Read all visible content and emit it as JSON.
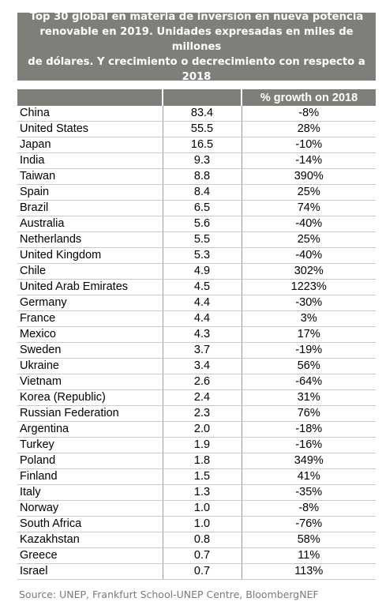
{
  "title_lines": [
    "Top 30 global en materia de inversión en nueva potencia",
    "renovable en 2019. Unidades expresadas en miles de millones",
    "de dólares. Y crecimiento o decrecimiento con respecto a 2018"
  ],
  "source": "Source: UNEP, Frankfurt School-UNEP Centre, BloombergNEF",
  "chart_data": {
    "type": "table",
    "columns": [
      "",
      "",
      "% growth on 2018"
    ],
    "rows": [
      {
        "country": "China",
        "value": "83.4",
        "growth": "-8%"
      },
      {
        "country": "United States",
        "value": "55.5",
        "growth": "28%"
      },
      {
        "country": "Japan",
        "value": "16.5",
        "growth": "-10%"
      },
      {
        "country": "India",
        "value": "9.3",
        "growth": "-14%"
      },
      {
        "country": "Taiwan",
        "value": "8.8",
        "growth": "390%"
      },
      {
        "country": "Spain",
        "value": "8.4",
        "growth": "25%"
      },
      {
        "country": "Brazil",
        "value": "6.5",
        "growth": "74%"
      },
      {
        "country": "Australia",
        "value": "5.6",
        "growth": "-40%"
      },
      {
        "country": "Netherlands",
        "value": "5.5",
        "growth": "25%"
      },
      {
        "country": "United Kingdom",
        "value": "5.3",
        "growth": "-40%"
      },
      {
        "country": "Chile",
        "value": "4.9",
        "growth": "302%"
      },
      {
        "country": "United Arab Emirates",
        "value": "4.5",
        "growth": "1223%"
      },
      {
        "country": "Germany",
        "value": "4.4",
        "growth": "-30%"
      },
      {
        "country": "France",
        "value": "4.4",
        "growth": "3%"
      },
      {
        "country": "Mexico",
        "value": "4.3",
        "growth": "17%"
      },
      {
        "country": "Sweden",
        "value": "3.7",
        "growth": "-19%"
      },
      {
        "country": "Ukraine",
        "value": "3.4",
        "growth": "56%"
      },
      {
        "country": "Vietnam",
        "value": "2.6",
        "growth": "-64%"
      },
      {
        "country": "Korea (Republic)",
        "value": "2.4",
        "growth": "31%"
      },
      {
        "country": "Russian Federation",
        "value": "2.3",
        "growth": "76%"
      },
      {
        "country": "Argentina",
        "value": "2.0",
        "growth": "-18%"
      },
      {
        "country": "Turkey",
        "value": "1.9",
        "growth": "-16%"
      },
      {
        "country": "Poland",
        "value": "1.8",
        "growth": "349%"
      },
      {
        "country": "Finland",
        "value": "1.5",
        "growth": "41%"
      },
      {
        "country": "Italy",
        "value": "1.3",
        "growth": "-35%"
      },
      {
        "country": "Norway",
        "value": "1.0",
        "growth": "-8%"
      },
      {
        "country": "South Africa",
        "value": "1.0",
        "growth": "-76%"
      },
      {
        "country": "Kazakhstan",
        "value": "0.8",
        "growth": "58%"
      },
      {
        "country": "Greece",
        "value": "0.7",
        "growth": "11%"
      },
      {
        "country": "Israel",
        "value": "0.7",
        "growth": "113%"
      }
    ]
  }
}
